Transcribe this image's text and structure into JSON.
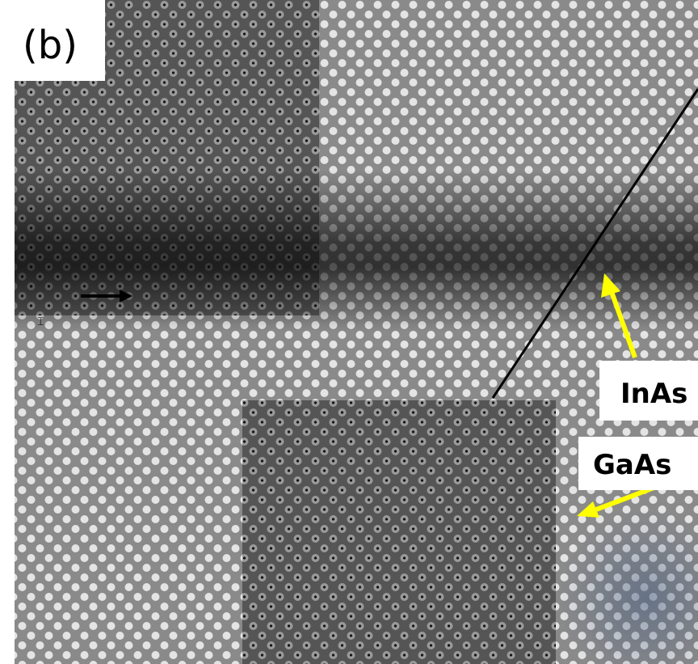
{
  "panel_label": "(b)",
  "annotations": [
    {
      "label": "InAs"
    },
    {
      "label": "GaAs"
    }
  ]
}
